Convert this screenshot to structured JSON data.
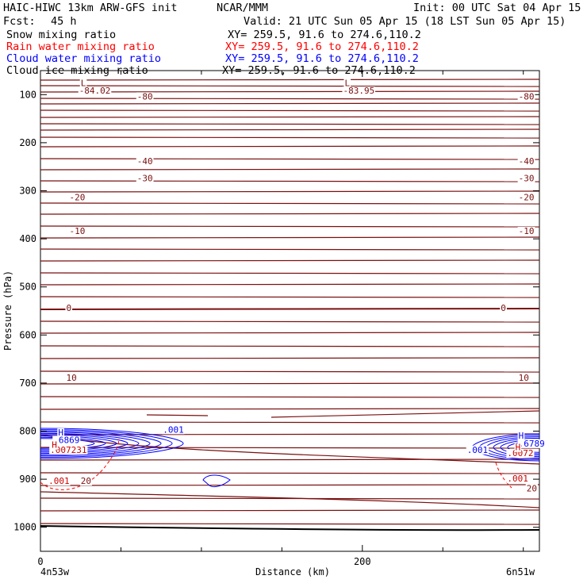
{
  "header": {
    "title_left": "HAIC-HIWC 13km ARW-GFS init",
    "org": "NCAR/MMM",
    "init": "Init: 00 UTC Sat 04 Apr 15",
    "fcst_label": "Fcst:",
    "fcst_value": "45 h",
    "valid": "Valid: 21 UTC Sun 05 Apr 15 (18 LST Sun 05 Apr 15)"
  },
  "fields": [
    {
      "name": "Snow mixing ratio",
      "xy": "XY= 259.5, 91.6 to 274.6,110.2",
      "color": "#000000"
    },
    {
      "name": "Rain water mixing ratio",
      "xy": "XY= 259.5, 91.6 to 274.6,110.2",
      "color": "#ff0000"
    },
    {
      "name": "Cloud water mixing ratio",
      "xy": "XY= 259.5, 91.6 to 274.6,110.2",
      "color": "#0000ff"
    },
    {
      "name": "Cloud ice mixing ratio",
      "xy": "XY= 259.5, 91.6 to 274.6,110.2",
      "color": "#000000"
    }
  ],
  "chart_data": {
    "type": "contour cross-section",
    "ylabel": "Pressure (hPa)",
    "xlabel": "Distance (km)",
    "ylim": [
      1050,
      50
    ],
    "xlim": [
      0,
      310
    ],
    "y_ticks": [
      100,
      200,
      300,
      400,
      500,
      600,
      700,
      800,
      900,
      1000
    ],
    "x_ticks": [
      0,
      200
    ],
    "x_minor_ticks": [
      50,
      100,
      150,
      250,
      300
    ],
    "endpoint_left": "4n53w",
    "endpoint_right": "6n51w",
    "temperature_labels": [
      {
        "text": "-80",
        "x": 60,
        "p": 110
      },
      {
        "text": "-80",
        "x": 297,
        "p": 110
      },
      {
        "text": "-40",
        "x": 60,
        "p": 245
      },
      {
        "text": "-40",
        "x": 297,
        "p": 245
      },
      {
        "text": "-30",
        "x": 60,
        "p": 280
      },
      {
        "text": "-30",
        "x": 297,
        "p": 280
      },
      {
        "text": "-20",
        "x": 18,
        "p": 320
      },
      {
        "text": "-20",
        "x": 297,
        "p": 320
      },
      {
        "text": "-10",
        "x": 18,
        "p": 390
      },
      {
        "text": "-10",
        "x": 297,
        "p": 390
      },
      {
        "text": "0",
        "x": 16,
        "p": 550
      },
      {
        "text": "0",
        "x": 286,
        "p": 550
      },
      {
        "text": "10",
        "x": 16,
        "p": 695
      },
      {
        "text": "10",
        "x": 297,
        "p": 695
      },
      {
        "text": "20",
        "x": 25,
        "p": 910
      },
      {
        "text": "20",
        "x": 302,
        "p": 925
      }
    ],
    "lows": [
      {
        "mark": "L",
        "value": "-84.02",
        "x": 25,
        "p": 82
      },
      {
        "mark": "L",
        "value": "-83.95",
        "x": 189,
        "p": 82
      }
    ],
    "highs": [
      {
        "mark": "H",
        "x": 11,
        "p": 809,
        "color": "#0000ff"
      },
      {
        "mark": "H",
        "x": 297,
        "p": 816,
        "color": "#0000ff"
      }
    ],
    "cloud_water_labels": [
      {
        "text": ".6869",
        "x": 8,
        "p": 825
      },
      {
        "text": ".6789",
        "x": 297,
        "p": 832
      },
      {
        "text": ".001",
        "x": 76,
        "p": 803
      },
      {
        "text": ".001",
        "x": 265,
        "p": 845
      }
    ],
    "rain_labels": [
      {
        "text": ".007231",
        "x": 6,
        "p": 845
      },
      {
        "text": ".0072",
        "x": 290,
        "p": 852
      },
      {
        "text": "H",
        "x": 7,
        "p": 835
      },
      {
        "text": "H",
        "x": 295,
        "p": 840
      },
      {
        "text": ".001",
        "x": 5,
        "p": 910
      },
      {
        "text": ".001",
        "x": 290,
        "p": 905
      }
    ]
  }
}
